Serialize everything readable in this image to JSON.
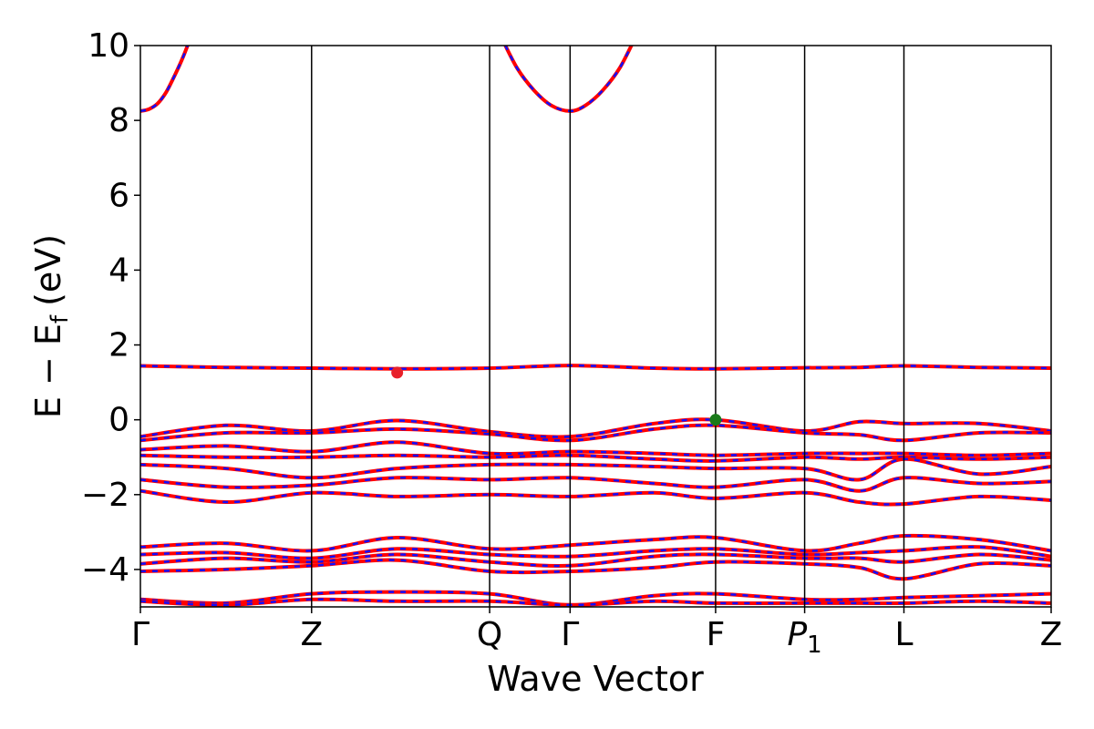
{
  "chart_data": {
    "type": "line",
    "xlabel": "Wave Vector",
    "ylabel": "E − E",
    "ylabel_sub": "f",
    "ylabel_unit": "(eV)",
    "ylim": [
      -5,
      10
    ],
    "yticks": [
      10,
      8,
      6,
      4,
      2,
      0,
      -2,
      -4
    ],
    "ytick_labels": [
      "10",
      "8",
      "6",
      "4",
      "2",
      "0",
      "−2",
      "−4"
    ],
    "kpoints": [
      {
        "label": "Γ",
        "sub": "",
        "x": 0
      },
      {
        "label": "Z",
        "sub": "",
        "x": 1
      },
      {
        "label": "Q",
        "sub": "",
        "x": 2.04
      },
      {
        "label": "Γ",
        "sub": "",
        "x": 2.51
      },
      {
        "label": "F",
        "sub": "",
        "x": 3.36
      },
      {
        "label": "P",
        "sub": "1",
        "x": 3.88
      },
      {
        "label": "L",
        "sub": "",
        "x": 4.46
      },
      {
        "label": "Z",
        "sub": "",
        "x": 5.32
      }
    ],
    "xlim": [
      0,
      5.32
    ],
    "series": [
      {
        "values": [
          [
            0,
            1.44
          ],
          [
            0.5,
            1.4
          ],
          [
            1,
            1.38
          ],
          [
            1.5,
            1.36
          ],
          [
            2.04,
            1.38
          ],
          [
            2.51,
            1.45
          ],
          [
            3,
            1.38
          ],
          [
            3.36,
            1.36
          ],
          [
            3.88,
            1.39
          ],
          [
            4.2,
            1.4
          ],
          [
            4.46,
            1.44
          ],
          [
            4.9,
            1.4
          ],
          [
            5.32,
            1.38
          ]
        ]
      },
      {
        "values": [
          [
            0,
            -0.45
          ],
          [
            0.5,
            -0.15
          ],
          [
            1,
            -0.3
          ],
          [
            1.5,
            -0.02
          ],
          [
            2.04,
            -0.32
          ],
          [
            2.51,
            -0.45
          ],
          [
            3,
            -0.1
          ],
          [
            3.36,
            0
          ],
          [
            3.88,
            -0.3
          ],
          [
            4.2,
            -0.05
          ],
          [
            4.46,
            -0.1
          ],
          [
            4.9,
            -0.1
          ],
          [
            5.32,
            -0.3
          ]
        ]
      },
      {
        "values": [
          [
            0,
            -0.55
          ],
          [
            0.5,
            -0.35
          ],
          [
            1,
            -0.35
          ],
          [
            1.5,
            -0.25
          ],
          [
            2.04,
            -0.38
          ],
          [
            2.51,
            -0.55
          ],
          [
            3,
            -0.25
          ],
          [
            3.36,
            -0.15
          ],
          [
            3.88,
            -0.35
          ],
          [
            4.2,
            -0.4
          ],
          [
            4.46,
            -0.55
          ],
          [
            4.9,
            -0.35
          ],
          [
            5.32,
            -0.35
          ]
        ]
      },
      {
        "values": [
          [
            0,
            -0.8
          ],
          [
            0.5,
            -0.7
          ],
          [
            1,
            -0.85
          ],
          [
            1.5,
            -0.6
          ],
          [
            2.04,
            -0.9
          ],
          [
            2.51,
            -0.85
          ],
          [
            3,
            -0.9
          ],
          [
            3.36,
            -0.95
          ],
          [
            3.88,
            -0.9
          ],
          [
            4.2,
            -0.9
          ],
          [
            4.46,
            -0.9
          ],
          [
            4.9,
            -0.95
          ],
          [
            5.32,
            -0.9
          ]
        ]
      },
      {
        "values": [
          [
            0,
            -0.95
          ],
          [
            0.5,
            -1.0
          ],
          [
            1,
            -1.0
          ],
          [
            1.5,
            -0.95
          ],
          [
            2.04,
            -1.0
          ],
          [
            2.51,
            -0.95
          ],
          [
            3,
            -1.05
          ],
          [
            3.36,
            -1.1
          ],
          [
            3.88,
            -1.0
          ],
          [
            4.2,
            -1.05
          ],
          [
            4.46,
            -1.0
          ],
          [
            4.9,
            -1.05
          ],
          [
            5.32,
            -1.0
          ]
        ]
      },
      {
        "values": [
          [
            0,
            -1.2
          ],
          [
            0.5,
            -1.3
          ],
          [
            1,
            -1.55
          ],
          [
            1.5,
            -1.3
          ],
          [
            2.04,
            -1.2
          ],
          [
            2.51,
            -1.2
          ],
          [
            3,
            -1.25
          ],
          [
            3.36,
            -1.3
          ],
          [
            3.88,
            -1.3
          ],
          [
            4.2,
            -1.6
          ],
          [
            4.46,
            -1.05
          ],
          [
            4.9,
            -1.45
          ],
          [
            5.32,
            -1.25
          ]
        ]
      },
      {
        "values": [
          [
            0,
            -1.6
          ],
          [
            0.5,
            -1.8
          ],
          [
            1,
            -1.75
          ],
          [
            1.5,
            -1.55
          ],
          [
            2.04,
            -1.6
          ],
          [
            2.51,
            -1.55
          ],
          [
            3,
            -1.7
          ],
          [
            3.36,
            -1.8
          ],
          [
            3.88,
            -1.6
          ],
          [
            4.2,
            -1.9
          ],
          [
            4.46,
            -1.55
          ],
          [
            4.9,
            -1.7
          ],
          [
            5.32,
            -1.65
          ]
        ]
      },
      {
        "values": [
          [
            0,
            -1.9
          ],
          [
            0.5,
            -2.2
          ],
          [
            1,
            -1.95
          ],
          [
            1.5,
            -2.05
          ],
          [
            2.04,
            -2.0
          ],
          [
            2.51,
            -2.05
          ],
          [
            3,
            -1.95
          ],
          [
            3.36,
            -2.1
          ],
          [
            3.88,
            -1.95
          ],
          [
            4.2,
            -2.2
          ],
          [
            4.46,
            -2.25
          ],
          [
            4.9,
            -2.05
          ],
          [
            5.32,
            -2.15
          ]
        ]
      },
      {
        "values": [
          [
            0,
            -3.4
          ],
          [
            0.5,
            -3.3
          ],
          [
            1,
            -3.5
          ],
          [
            1.5,
            -3.15
          ],
          [
            2.04,
            -3.45
          ],
          [
            2.51,
            -3.35
          ],
          [
            3,
            -3.2
          ],
          [
            3.36,
            -3.15
          ],
          [
            3.88,
            -3.5
          ],
          [
            4.2,
            -3.3
          ],
          [
            4.46,
            -3.1
          ],
          [
            4.9,
            -3.2
          ],
          [
            5.32,
            -3.5
          ]
        ]
      },
      {
        "values": [
          [
            0,
            -3.6
          ],
          [
            0.5,
            -3.55
          ],
          [
            1,
            -3.7
          ],
          [
            1.5,
            -3.45
          ],
          [
            2.04,
            -3.6
          ],
          [
            2.51,
            -3.65
          ],
          [
            3,
            -3.5
          ],
          [
            3.36,
            -3.45
          ],
          [
            3.88,
            -3.6
          ],
          [
            4.2,
            -3.55
          ],
          [
            4.46,
            -3.5
          ],
          [
            4.9,
            -3.4
          ],
          [
            5.32,
            -3.65
          ]
        ]
      },
      {
        "values": [
          [
            0,
            -3.85
          ],
          [
            0.5,
            -3.7
          ],
          [
            1,
            -3.8
          ],
          [
            1.5,
            -3.6
          ],
          [
            2.04,
            -3.8
          ],
          [
            2.51,
            -3.9
          ],
          [
            3,
            -3.65
          ],
          [
            3.36,
            -3.6
          ],
          [
            3.88,
            -3.7
          ],
          [
            4.2,
            -3.7
          ],
          [
            4.46,
            -3.8
          ],
          [
            4.9,
            -3.6
          ],
          [
            5.32,
            -3.75
          ]
        ]
      },
      {
        "values": [
          [
            0,
            -4.05
          ],
          [
            0.5,
            -4.0
          ],
          [
            1,
            -3.9
          ],
          [
            1.5,
            -3.75
          ],
          [
            2.04,
            -4.05
          ],
          [
            2.51,
            -4.05
          ],
          [
            3,
            -3.95
          ],
          [
            3.36,
            -3.8
          ],
          [
            3.88,
            -3.85
          ],
          [
            4.2,
            -3.95
          ],
          [
            4.46,
            -4.25
          ],
          [
            4.9,
            -3.85
          ],
          [
            5.32,
            -3.9
          ]
        ]
      },
      {
        "values": [
          [
            0,
            -4.8
          ],
          [
            0.5,
            -4.9
          ],
          [
            1,
            -4.65
          ],
          [
            1.5,
            -4.6
          ],
          [
            2.04,
            -4.65
          ],
          [
            2.51,
            -4.95
          ],
          [
            3,
            -4.7
          ],
          [
            3.36,
            -4.65
          ],
          [
            3.88,
            -4.8
          ],
          [
            4.2,
            -4.8
          ],
          [
            4.46,
            -4.75
          ],
          [
            4.9,
            -4.7
          ],
          [
            5.32,
            -4.65
          ]
        ]
      },
      {
        "values": [
          [
            0,
            -4.85
          ],
          [
            0.5,
            -4.95
          ],
          [
            1,
            -4.8
          ],
          [
            1.5,
            -4.85
          ],
          [
            2.04,
            -4.85
          ],
          [
            2.51,
            -4.95
          ],
          [
            3,
            -4.85
          ],
          [
            3.36,
            -4.9
          ],
          [
            3.88,
            -4.9
          ],
          [
            4.2,
            -4.9
          ],
          [
            4.46,
            -4.9
          ],
          [
            4.9,
            -4.85
          ],
          [
            5.32,
            -4.9
          ]
        ]
      },
      {
        "values": [
          [
            0,
            8.25
          ],
          [
            0.05,
            8.3
          ],
          [
            0.1,
            8.45
          ],
          [
            0.15,
            8.75
          ],
          [
            0.2,
            9.2
          ],
          [
            0.25,
            9.7
          ],
          [
            0.3,
            10.3
          ]
        ]
      },
      {
        "values": [
          [
            2.1,
            10.3
          ],
          [
            2.2,
            9.4
          ],
          [
            2.3,
            8.8
          ],
          [
            2.4,
            8.4
          ],
          [
            2.51,
            8.25
          ],
          [
            2.6,
            8.4
          ],
          [
            2.7,
            8.8
          ],
          [
            2.8,
            9.4
          ],
          [
            2.9,
            10.3
          ]
        ]
      }
    ],
    "markers": [
      {
        "x": 1.5,
        "y": 1.26,
        "color": "#e8202a"
      },
      {
        "x": 3.36,
        "y": 0.0,
        "color": "#1a7a1a"
      }
    ],
    "colors": {
      "band_solid": "#ff0000",
      "band_dash": "#1010ff",
      "axis": "#000000"
    }
  }
}
